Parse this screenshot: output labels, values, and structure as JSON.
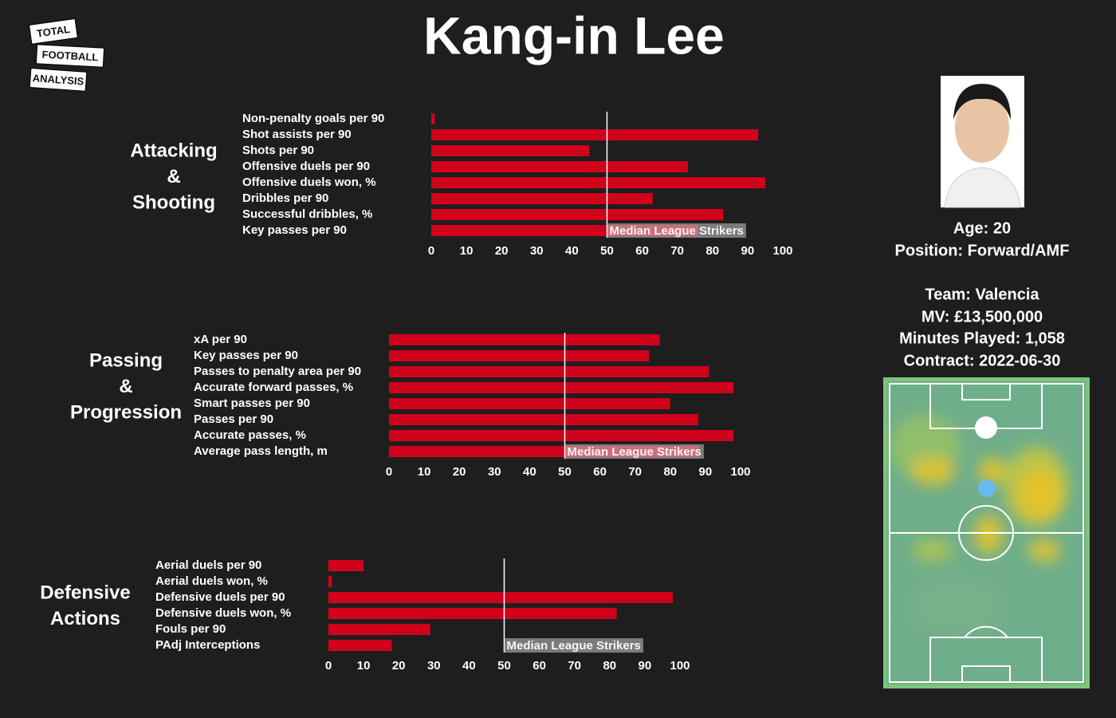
{
  "title": "Kang-in Lee",
  "logo": [
    "TOTAL",
    "FOOTBALL",
    "ANALYSIS"
  ],
  "player": {
    "age": "Age: 20",
    "position": "Position: Forward/AMF",
    "team": "Team: Valencia",
    "market_value": "MV: £13,500,000",
    "minutes": "Minutes Played: 1,058",
    "contract": "Contract: 2022-06-30"
  },
  "chart_data": [
    {
      "type": "bar",
      "orientation": "horizontal",
      "title": [
        "Attacking",
        "&",
        "Shooting"
      ],
      "categories": [
        "Non-penalty goals per 90",
        "Shot assists per 90",
        "Shots per 90",
        "Offensive duels per 90",
        "Offensive duels won, %",
        "Dribbles per 90",
        "Successful dribbles, %",
        "Key passes per 90"
      ],
      "values": [
        1,
        93,
        45,
        73,
        95,
        63,
        83,
        76
      ],
      "color": "#d0021b",
      "xlim": [
        0,
        100
      ],
      "xticks": [
        0,
        10,
        20,
        30,
        40,
        50,
        60,
        70,
        80,
        90,
        100
      ],
      "median": 50,
      "median_label": "Median League Strikers"
    },
    {
      "type": "bar",
      "orientation": "horizontal",
      "title": [
        "Passing",
        "&",
        "Progression"
      ],
      "categories": [
        "xA per 90",
        "Key passes per 90",
        "Passes to penalty area per 90",
        "Accurate forward passes, %",
        "Smart passes per 90",
        "Passes per 90",
        "Accurate passes, %",
        "Average pass length, m"
      ],
      "values": [
        77,
        74,
        91,
        98,
        80,
        88,
        98,
        88
      ],
      "color": "#d0021b",
      "xlim": [
        0,
        100
      ],
      "xticks": [
        0,
        10,
        20,
        30,
        40,
        50,
        60,
        70,
        80,
        90,
        100
      ],
      "median": 50,
      "median_label": "Median League Strikers"
    },
    {
      "type": "bar",
      "orientation": "horizontal",
      "title": [
        "Defensive",
        "Actions"
      ],
      "categories": [
        "Aerial duels per 90",
        "Aerial duels won, %",
        "Defensive duels per 90",
        "Defensive duels won, %",
        "Fouls per 90",
        "PAdj Interceptions"
      ],
      "values": [
        10,
        1,
        98,
        82,
        29,
        18
      ],
      "color": "#d0021b",
      "xlim": [
        0,
        100
      ],
      "xticks": [
        0,
        10,
        20,
        30,
        40,
        50,
        60,
        70,
        80,
        90,
        100
      ],
      "median": 50,
      "median_label": "Median League Strikers"
    }
  ]
}
